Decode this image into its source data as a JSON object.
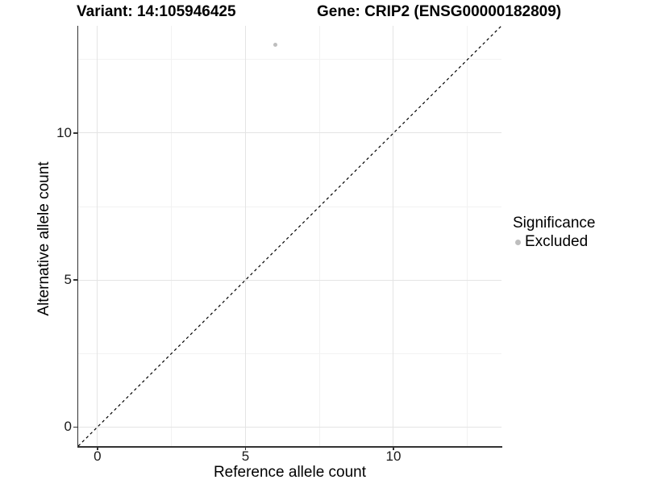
{
  "chart_data": {
    "type": "scatter",
    "title_left": "Variant: 14:105946425",
    "title_right": "Gene: CRIP2 (ENSG00000182809)",
    "xlabel": "Reference allele count",
    "ylabel": "Alternative allele count",
    "xlim": [
      -0.65,
      13.65
    ],
    "ylim": [
      -0.65,
      13.65
    ],
    "x_ticks": [
      0,
      5,
      10
    ],
    "y_ticks": [
      0,
      5,
      10
    ],
    "minor_gridlines": [
      2.5,
      7.5,
      12.5
    ],
    "grid": "major and minor gridlines on white background",
    "points": [
      {
        "x": 6,
        "y": 13,
        "series": "Excluded",
        "color": "#bebebe"
      }
    ],
    "reference_line": {
      "type": "identity y=x",
      "style": "dashed",
      "color": "#000000"
    },
    "legend": {
      "title": "Significance",
      "position": "right",
      "entries": [
        {
          "label": "Excluded",
          "color": "#bebebe",
          "marker": "circle"
        }
      ]
    },
    "colors": {
      "grid_major": "#e4e4e4",
      "grid_minor": "#f2f2f2",
      "axis_line": "#333333",
      "point": "#bebebe"
    }
  }
}
